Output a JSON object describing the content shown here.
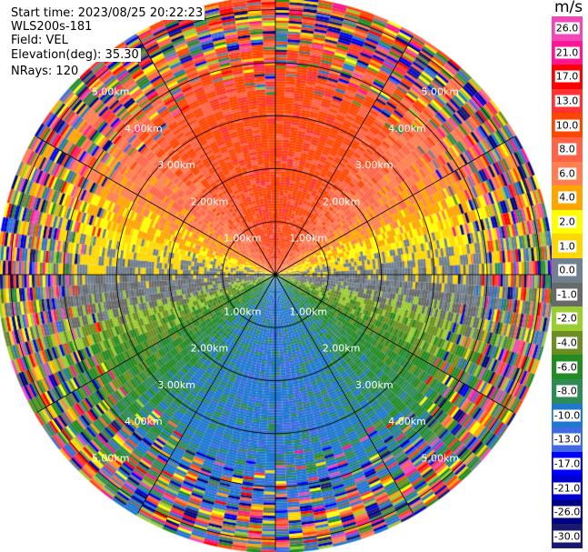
{
  "header": {
    "start_time": "Start time: 2023/08/25 20:22:23",
    "instrument": "WLS200s-181",
    "field": "Field: VEL",
    "elevation": "Elevation(deg): 35.30",
    "nrays": "NRays: 120"
  },
  "chart_data": {
    "type": "heatmap",
    "projection": "polar PPI",
    "field": "VEL",
    "elevation_deg": 35.3,
    "nrays": 120,
    "range_rings_km": [
      1,
      2,
      3,
      4,
      5
    ],
    "range_ring_labels": [
      "1.00km",
      "2.00km",
      "3.00km",
      "4.00km",
      "5.00km"
    ],
    "max_range_km": 5.2,
    "spoke_interval_deg": 30,
    "pattern": "positive velocities (orange/red, ~6–13 m/s) to the north, negative velocities (blue, ~-10 to -13 m/s) to the south, near-zero (gray) along east-west axis, noisy speckle beyond ~3.5 km",
    "colorbar": {
      "unit": "m/s",
      "labels": [
        "26.0",
        "21.0",
        "17.0",
        "13.0",
        "10.0",
        "8.0",
        "6.0",
        "4.0",
        "2.0",
        "1.0",
        "0.0",
        "-1.0",
        "-2.0",
        "-4.0",
        "-6.0",
        "-8.0",
        "-10.0",
        "-13.0",
        "-17.0",
        "-21.0",
        "-26.0",
        "-30.0"
      ],
      "colors": [
        "#f048b8",
        "#ff1493",
        "#ff0000",
        "#ff3333",
        "#ff4500",
        "#ff6347",
        "#ff7f50",
        "#ffa500",
        "#ffff00",
        "#ffd700",
        "#708090",
        "#696969",
        "#9acd32",
        "#6b8e23",
        "#228b22",
        "#2e8b57",
        "#1e78d0",
        "#4169e1",
        "#0000ff",
        "#0000cd",
        "#000080",
        "#191970"
      ]
    }
  }
}
